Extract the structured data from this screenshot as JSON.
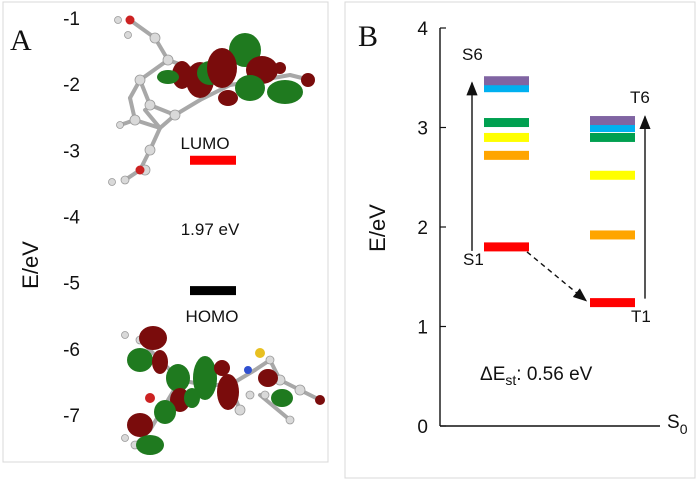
{
  "chart_data": [
    {
      "type": "energy-level",
      "panel": "A",
      "ylabel": "E/eV",
      "ylim": [
        -7,
        -1
      ],
      "yticks": [
        -1,
        -2,
        -3,
        -4,
        -5,
        -6,
        -7
      ],
      "levels": [
        {
          "name": "LUMO",
          "energy": -3.15,
          "color": "#ff0000"
        },
        {
          "name": "HOMO",
          "energy": -5.12,
          "color": "#000000"
        }
      ],
      "gap_label": "1.97 eV",
      "orbital_colors": {
        "positive": "#1f7a1f",
        "negative": "#7a0c0c"
      }
    },
    {
      "type": "energy-level",
      "panel": "B",
      "ylabel": "E/eV",
      "ylim": [
        0,
        4
      ],
      "yticks": [
        0,
        1,
        2,
        3,
        4
      ],
      "x_end_label": "S",
      "x_end_sub": "0",
      "singlets": [
        {
          "energy": 1.8,
          "color": "#ff0000"
        },
        {
          "energy": 2.72,
          "color": "#ffa500"
        },
        {
          "energy": 2.9,
          "color": "#ffff00"
        },
        {
          "energy": 3.05,
          "color": "#00a050"
        },
        {
          "energy": 3.4,
          "color": "#00b0f0"
        },
        {
          "energy": 3.47,
          "color": "#8064a2"
        }
      ],
      "triplets": [
        {
          "energy": 1.24,
          "color": "#ff0000"
        },
        {
          "energy": 1.92,
          "color": "#ffa500"
        },
        {
          "energy": 2.52,
          "color": "#ffff00"
        },
        {
          "energy": 2.9,
          "color": "#00a050"
        },
        {
          "energy": 3.0,
          "color": "#00b0f0"
        },
        {
          "energy": 3.07,
          "color": "#8064a2"
        }
      ],
      "labels": {
        "s1": "S1",
        "s6": "S6",
        "t1": "T1",
        "t6": "T6"
      },
      "delta": {
        "prefix": "ΔE",
        "sub": "st",
        "suffix": ": 0.56 eV"
      }
    }
  ]
}
